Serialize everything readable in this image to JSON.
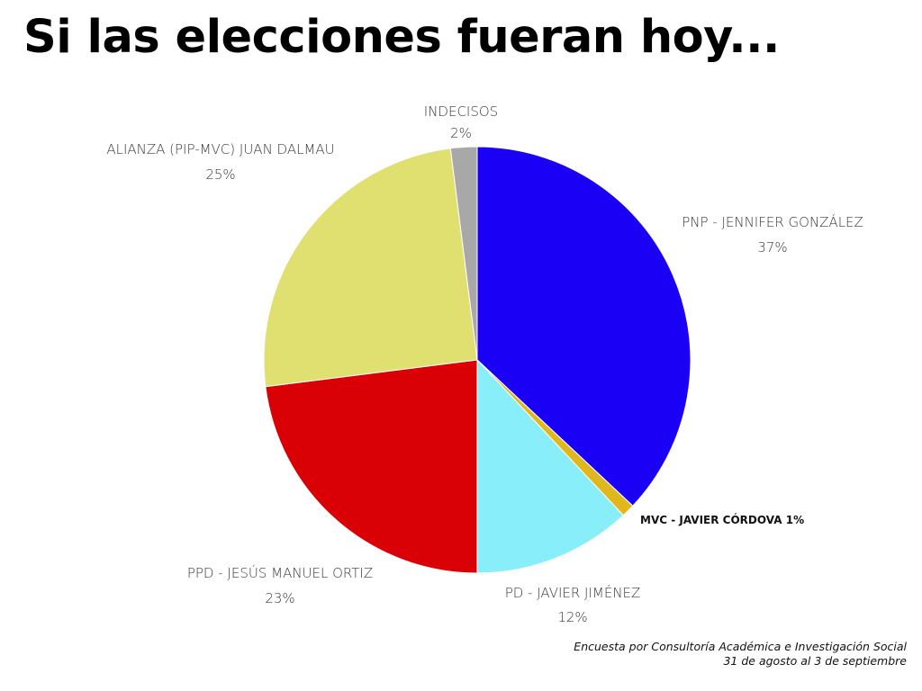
{
  "title": "Si las elecciones fueran hoy...",
  "source": {
    "line1": "Encuesta por Consultoría Académica e Investigación Social",
    "line2": "31 de agosto al 3 de septiembre"
  },
  "chart_data": {
    "type": "pie",
    "title": "Si las elecciones fueran hoy...",
    "start_angle_deg": 0,
    "direction": "clockwise",
    "slices": [
      {
        "name": "PNP - JENNIFER GONZÁLEZ",
        "value": 37,
        "value_label": "37%",
        "color": "#1a00f5"
      },
      {
        "name": "MVC - JAVIER CÓRDOVA",
        "value": 1,
        "value_label": "1%",
        "color": "#e0b81e"
      },
      {
        "name": "PD - JAVIER JIMÉNEZ",
        "value": 12,
        "value_label": "12%",
        "color": "#88eefa"
      },
      {
        "name": "PPD - JESÚS MANUEL ORTIZ",
        "value": 23,
        "value_label": "23%",
        "color": "#d90006"
      },
      {
        "name": "ALIANZA (PIP-MVC) JUAN DALMAU",
        "value": 25,
        "value_label": "25%",
        "color": "#e0e070"
      },
      {
        "name": "INDECISOS",
        "value": 2,
        "value_label": "2%",
        "color": "#a8a8a8"
      }
    ]
  }
}
